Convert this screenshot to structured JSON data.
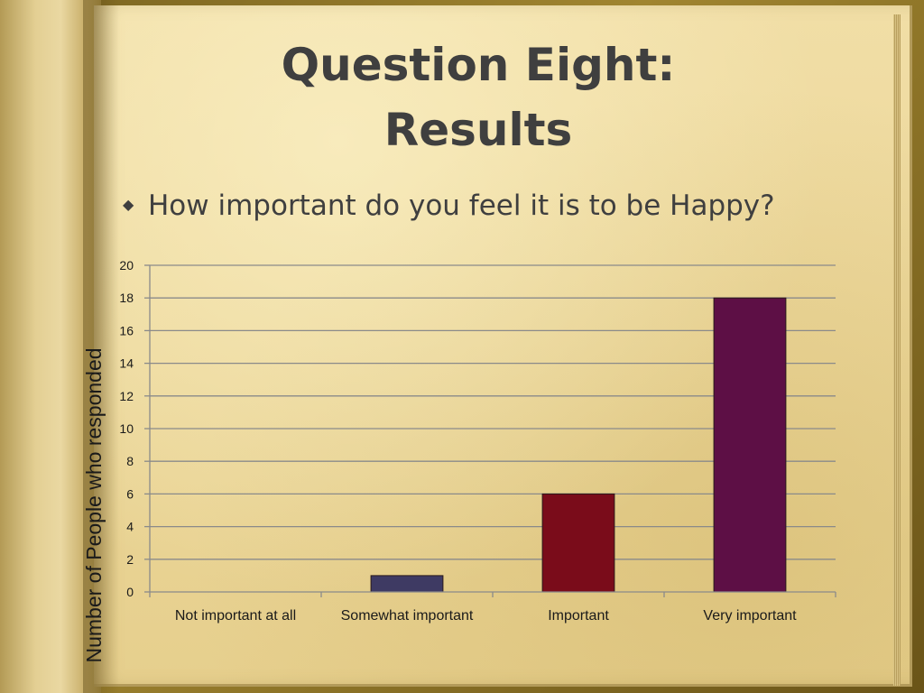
{
  "slide": {
    "title_line1": "Question Eight:",
    "title_line2": "Results",
    "bullet_icon": "diamond-bullet-icon",
    "bullet_text": "How important do you feel it is to be Happy?"
  },
  "colors": {
    "text": "#3f3f3f",
    "grid": "#8a8a8a",
    "bar_somewhat": "#3e3a63",
    "bar_important": "#7a0c1a",
    "bar_very": "#5d0f45"
  },
  "chart_data": {
    "type": "bar",
    "categories": [
      "Not important at all",
      "Somewhat important",
      "Important",
      "Very important"
    ],
    "values": [
      0,
      1,
      6,
      18
    ],
    "bar_colors": [
      "#3e3a63",
      "#3e3a63",
      "#7a0c1a",
      "#5d0f45"
    ],
    "title": "",
    "xlabel": "",
    "ylabel": "Number of People who responded",
    "ylim": [
      0,
      20
    ],
    "yticks": [
      0,
      2,
      4,
      6,
      8,
      10,
      12,
      14,
      16,
      18,
      20
    ],
    "grid": true,
    "legend": "none"
  }
}
